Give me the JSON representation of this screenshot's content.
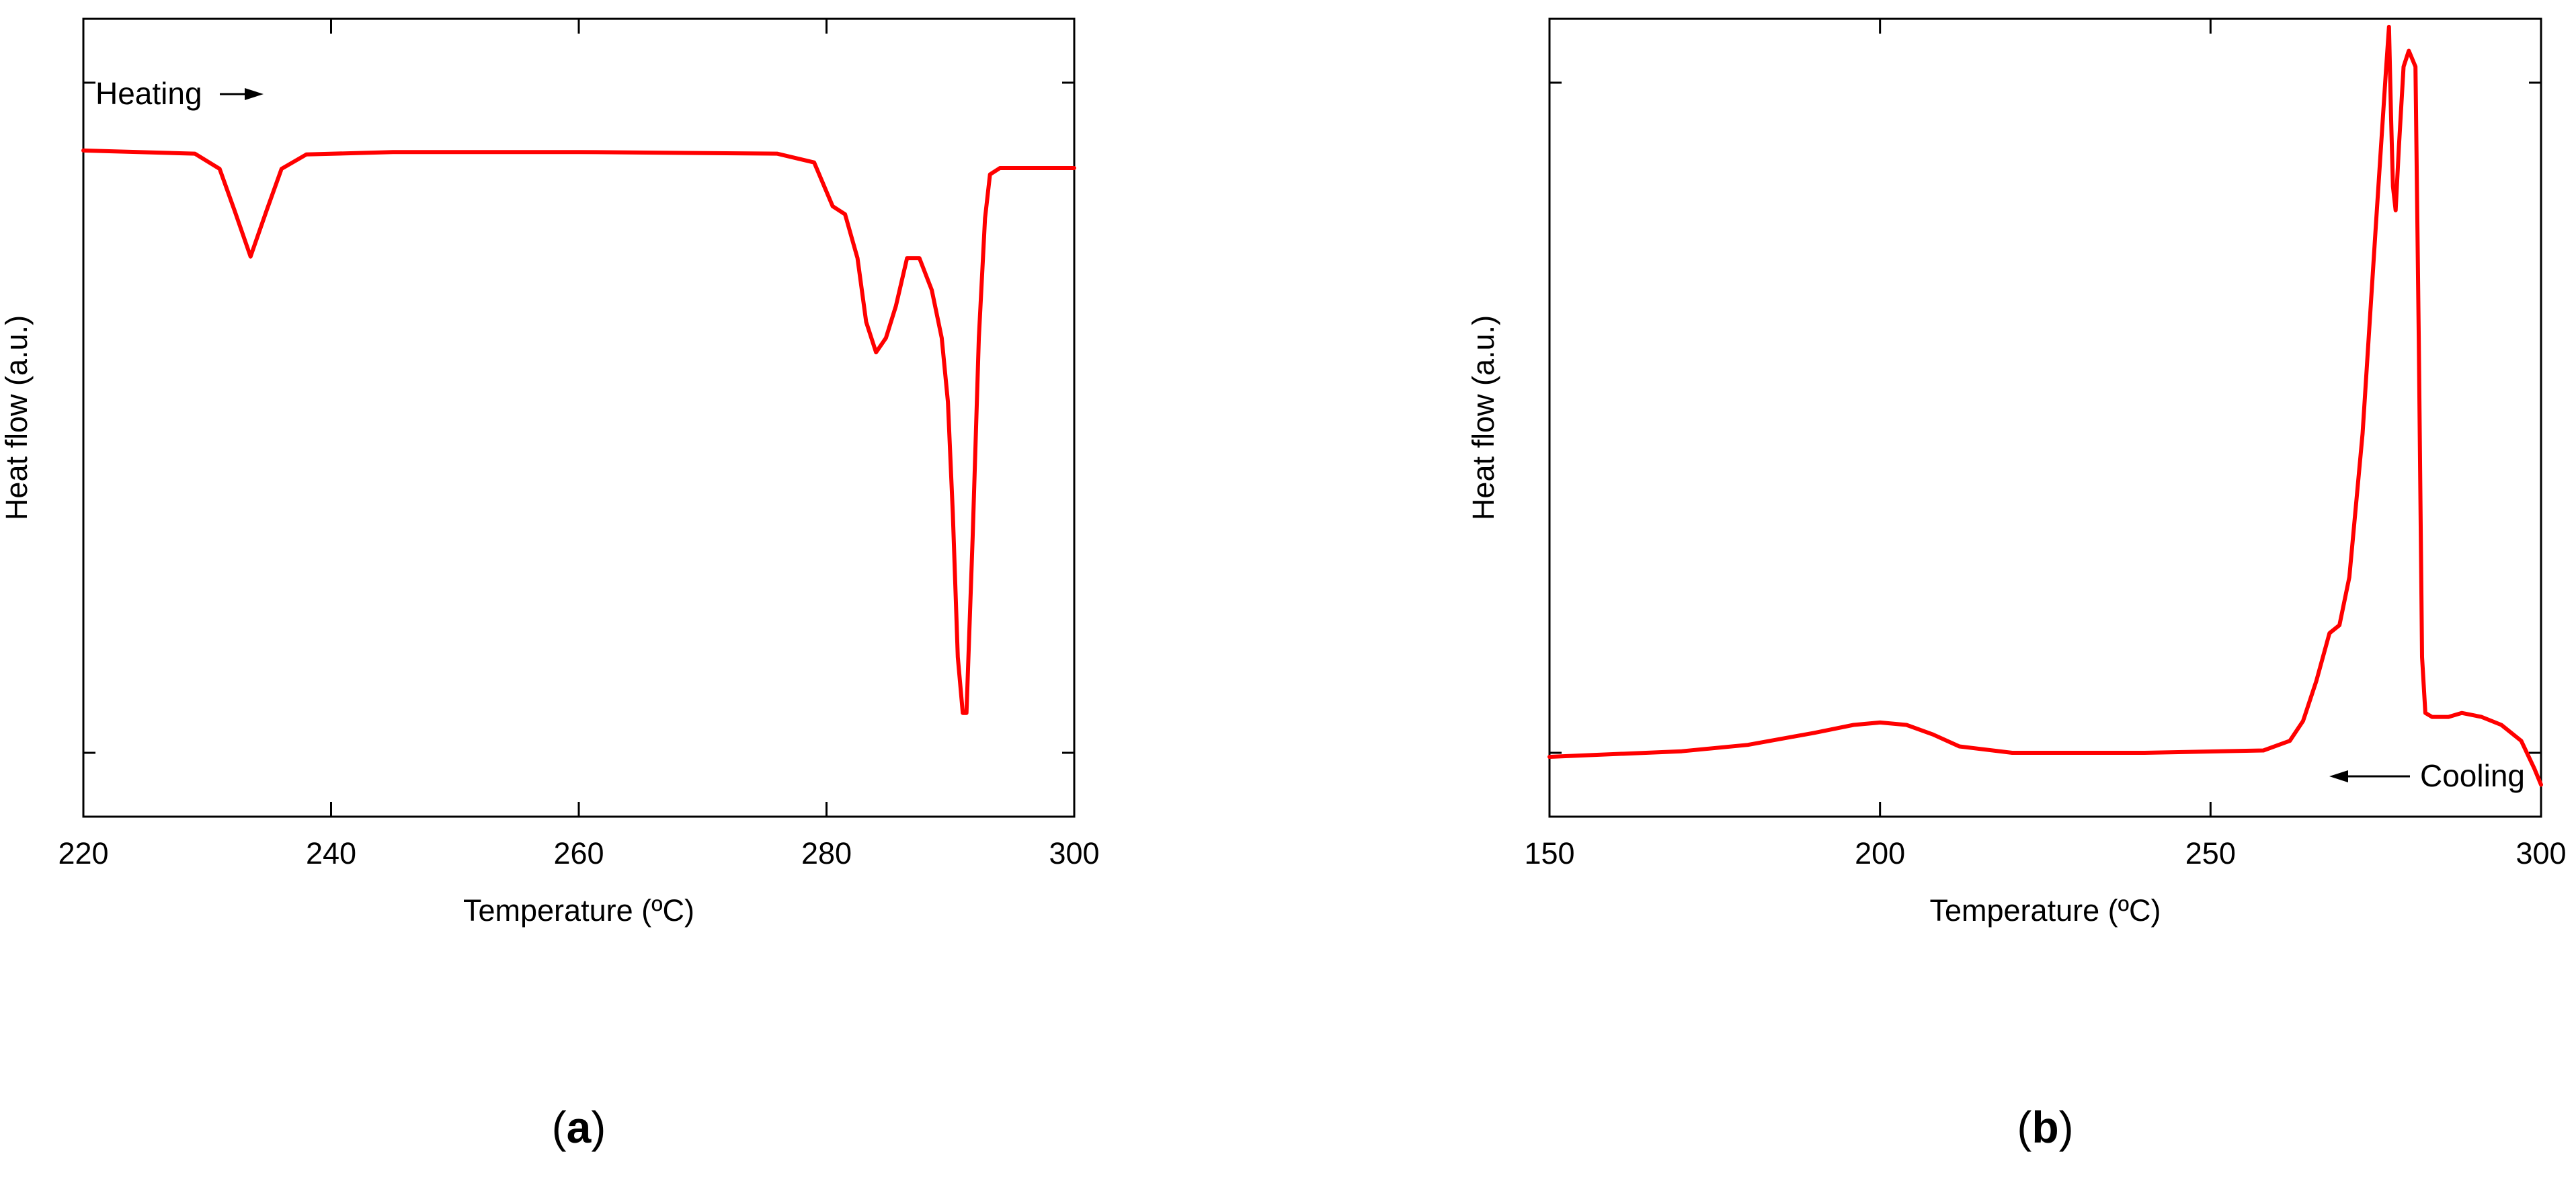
{
  "chart_data": [
    {
      "type": "line",
      "panel_label": "a",
      "xlabel": "Temperature (ºC)",
      "ylabel": "Heat flow (a.u.)",
      "xlim": [
        220,
        300
      ],
      "ylim": [
        0,
        1
      ],
      "xticks": [
        220,
        240,
        260,
        280,
        300
      ],
      "y_tick_labels": false,
      "grid": false,
      "annotation": {
        "text": "Heating",
        "arrow": "right"
      },
      "color": "#ff0000",
      "series": [
        {
          "x": [
            220,
            229,
            231,
            232.2,
            233.5,
            234.8,
            236,
            238,
            245,
            260,
            276,
            279,
            280.5,
            281.5,
            282.5,
            283.2,
            284,
            284.8,
            285.6,
            286.5,
            287.5,
            288.5,
            289.3,
            289.8,
            290.2,
            290.6,
            291,
            291.3,
            291.8,
            292.3,
            292.8,
            293.2,
            294,
            300
          ],
          "y": [
            0.835,
            0.831,
            0.812,
            0.76,
            0.702,
            0.76,
            0.812,
            0.83,
            0.833,
            0.833,
            0.831,
            0.82,
            0.765,
            0.755,
            0.7,
            0.62,
            0.582,
            0.6,
            0.64,
            0.7,
            0.7,
            0.66,
            0.6,
            0.52,
            0.38,
            0.2,
            0.13,
            0.13,
            0.35,
            0.6,
            0.75,
            0.805,
            0.813,
            0.813
          ]
        }
      ]
    },
    {
      "type": "line",
      "panel_label": "b",
      "xlabel": "Temperature (ºC)",
      "ylabel": "Heat flow (a.u.)",
      "xlim": [
        150,
        300
      ],
      "ylim": [
        0,
        1
      ],
      "xticks": [
        150,
        200,
        250,
        300
      ],
      "y_tick_labels": false,
      "grid": false,
      "annotation": {
        "text": "Cooling",
        "arrow": "left"
      },
      "color": "#ff0000",
      "series": [
        {
          "x": [
            150,
            170,
            180,
            190,
            196,
            200,
            204,
            208,
            212,
            220,
            240,
            258,
            262,
            264,
            266,
            268,
            269.5,
            271,
            273,
            275,
            276.5,
            277,
            277.3,
            277.6,
            278,
            278.5,
            279.2,
            280,
            281,
            281.5,
            282,
            282.5,
            283.5,
            286,
            288,
            291,
            294,
            297,
            299,
            300
          ],
          "y": [
            0.075,
            0.082,
            0.09,
            0.105,
            0.115,
            0.118,
            0.115,
            0.103,
            0.088,
            0.08,
            0.08,
            0.083,
            0.095,
            0.12,
            0.17,
            0.23,
            0.24,
            0.3,
            0.48,
            0.74,
            0.93,
            0.99,
            0.88,
            0.79,
            0.76,
            0.84,
            0.94,
            0.96,
            0.94,
            0.6,
            0.2,
            0.13,
            0.125,
            0.125,
            0.13,
            0.125,
            0.115,
            0.095,
            0.06,
            0.04
          ]
        }
      ]
    }
  ]
}
